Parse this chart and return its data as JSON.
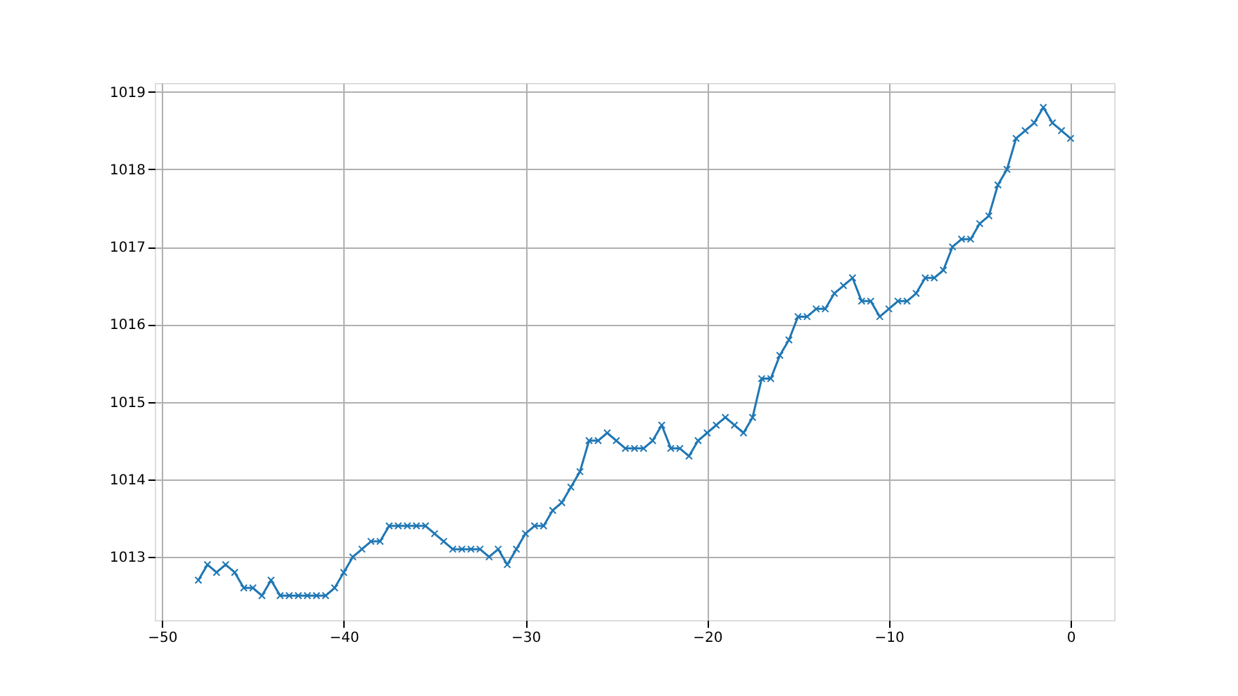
{
  "chart_data": {
    "type": "line",
    "x": [
      -48,
      -47.5,
      -47,
      -46.5,
      -46,
      -45.5,
      -45,
      -44.5,
      -44,
      -43.5,
      -43,
      -42.5,
      -42,
      -41.5,
      -41,
      -40.5,
      -40,
      -39.5,
      -39,
      -38.5,
      -38,
      -37.5,
      -37,
      -36.5,
      -36,
      -35.5,
      -35,
      -34.5,
      -34,
      -33.5,
      -33,
      -32.5,
      -32,
      -31.5,
      -31,
      -30.5,
      -30,
      -29.5,
      -29,
      -28.5,
      -28,
      -27.5,
      -27,
      -26.5,
      -26,
      -25.5,
      -25,
      -24.5,
      -24,
      -23.5,
      -23,
      -22.5,
      -22,
      -21.5,
      -21,
      -20.5,
      -20,
      -19.5,
      -19,
      -18.5,
      -18,
      -17.5,
      -17,
      -16.5,
      -16,
      -15.5,
      -15,
      -14.5,
      -14,
      -13.5,
      -13,
      -12.5,
      -12,
      -11.5,
      -11,
      -10.5,
      -10,
      -9.5,
      -9,
      -8.5,
      -8,
      -7.5,
      -7,
      -6.5,
      -6,
      -5.5,
      -5,
      -4.5,
      -4,
      -3.5,
      -3,
      -2.5,
      -2,
      -1.5,
      -1,
      -0.5,
      0
    ],
    "series": [
      {
        "color": "#1f77b4",
        "values": [
          1012.7,
          1012.9,
          1012.8,
          1012.9,
          1012.8,
          1012.6,
          1012.6,
          1012.5,
          1012.7,
          1012.5,
          1012.5,
          1012.5,
          1012.5,
          1012.5,
          1012.5,
          1012.6,
          1012.8,
          1013.0,
          1013.1,
          1013.2,
          1013.2,
          1013.4,
          1013.4,
          1013.4,
          1013.4,
          1013.4,
          1013.3,
          1013.2,
          1013.1,
          1013.1,
          1013.1,
          1013.1,
          1013.0,
          1013.1,
          1012.9,
          1013.1,
          1013.3,
          1013.4,
          1013.4,
          1013.6,
          1013.7,
          1013.9,
          1014.1,
          1014.5,
          1014.5,
          1014.6,
          1014.5,
          1014.4,
          1014.4,
          1014.4,
          1014.5,
          1014.7,
          1014.4,
          1014.4,
          1014.3,
          1014.5,
          1014.6,
          1014.7,
          1014.8,
          1014.7,
          1014.6,
          1014.8,
          1015.3,
          1015.3,
          1015.6,
          1015.8,
          1016.1,
          1016.1,
          1016.2,
          1016.2,
          1016.4,
          1016.5,
          1016.6,
          1016.3,
          1016.3,
          1016.1,
          1016.2,
          1016.3,
          1016.3,
          1016.4,
          1016.6,
          1016.6,
          1016.7,
          1017.0,
          1017.1,
          1017.1,
          1017.3,
          1017.4,
          1017.8,
          1018.0,
          1018.4,
          1018.5,
          1018.6,
          1018.8,
          1018.6,
          1018.5,
          1018.4
        ]
      }
    ],
    "xlim": [
      -50.4,
      2.4
    ],
    "ylim": [
      1012.185,
      1019.115
    ],
    "xticks": [
      -50,
      -40,
      -30,
      -20,
      -10,
      0
    ],
    "yticks": [
      1013,
      1014,
      1015,
      1016,
      1017,
      1018,
      1019
    ],
    "grid": true,
    "marker": "cross",
    "line_style": "solid"
  }
}
